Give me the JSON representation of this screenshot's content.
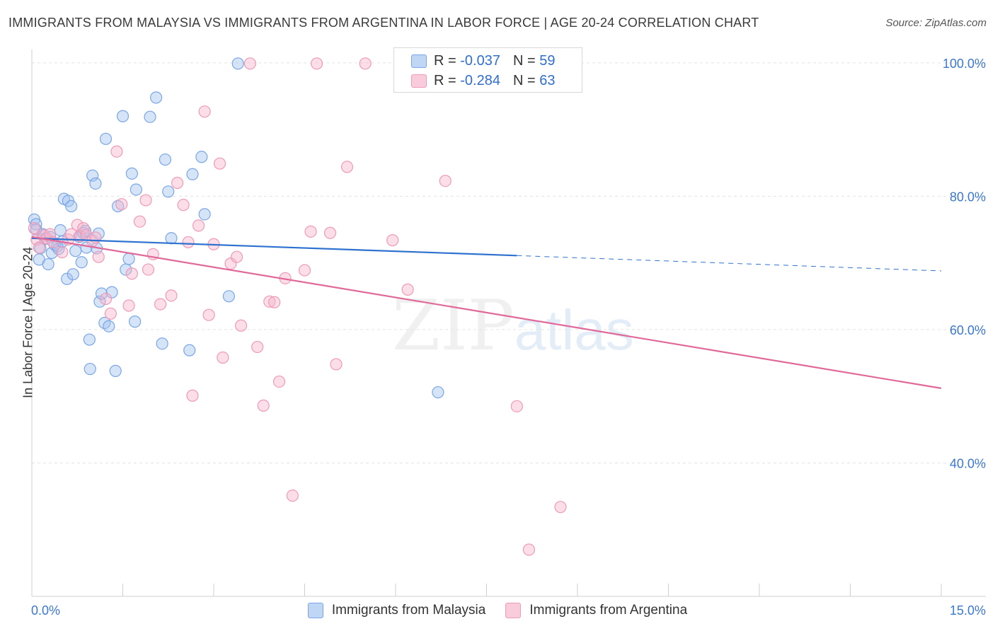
{
  "title": "IMMIGRANTS FROM MALAYSIA VS IMMIGRANTS FROM ARGENTINA IN LABOR FORCE | AGE 20-24 CORRELATION CHART",
  "source": "Source: ZipAtlas.com",
  "watermark": {
    "zip": "ZIP",
    "atlas": "atlas"
  },
  "legend_top": [
    {
      "r_label": "R = ",
      "r_value": "-0.037",
      "n_label": "N = ",
      "n_value": "59"
    },
    {
      "r_label": "R = ",
      "r_value": "-0.284",
      "n_label": "N = ",
      "n_value": "63"
    }
  ],
  "colors": {
    "blue_fill": "rgba(164,196,240,0.45)",
    "blue_stroke": "#7aa6e6",
    "blue_line": "#2e72cf",
    "pink_fill": "rgba(246,182,204,0.45)",
    "pink_stroke": "#ee9ab8",
    "pink_line": "#e0699a",
    "tick_label": "#3b78d0",
    "grid": "#e3e3e3"
  },
  "chart_data": {
    "type": "scatter",
    "xlabel": "",
    "ylabel": "In Labor Force | Age 20-24",
    "xlim": [
      0,
      15
    ],
    "ylim": [
      20,
      102
    ],
    "x_tick_labels": [
      "0.0%",
      "15.0%"
    ],
    "y_ticks": [
      40,
      60,
      80,
      100
    ],
    "y_tick_labels": [
      "40.0%",
      "60.0%",
      "80.0%",
      "100.0%"
    ],
    "grid": true,
    "legend_position": "bottom",
    "series": [
      {
        "name": "Immigrants from Malaysia",
        "points": [
          [
            0.04,
            76.5
          ],
          [
            0.07,
            75.8
          ],
          [
            0.12,
            70.5
          ],
          [
            0.14,
            72.2
          ],
          [
            0.18,
            74.3
          ],
          [
            0.22,
            73.6
          ],
          [
            0.27,
            69.8
          ],
          [
            0.3,
            73.9
          ],
          [
            0.33,
            71.5
          ],
          [
            0.38,
            72.7
          ],
          [
            0.42,
            72.5
          ],
          [
            0.44,
            72.1
          ],
          [
            0.47,
            74.9
          ],
          [
            0.5,
            73.2
          ],
          [
            0.53,
            79.6
          ],
          [
            0.58,
            67.6
          ],
          [
            0.6,
            79.3
          ],
          [
            0.65,
            78.5
          ],
          [
            0.68,
            68.3
          ],
          [
            0.72,
            71.8
          ],
          [
            0.78,
            73.9
          ],
          [
            0.82,
            70.1
          ],
          [
            0.85,
            74.5
          ],
          [
            0.88,
            74.8
          ],
          [
            0.9,
            72.3
          ],
          [
            0.95,
            58.5
          ],
          [
            0.96,
            54.1
          ],
          [
            1.0,
            83.1
          ],
          [
            1.05,
            81.9
          ],
          [
            1.1,
            74.4
          ],
          [
            1.12,
            64.2
          ],
          [
            1.15,
            65.4
          ],
          [
            1.2,
            61.0
          ],
          [
            1.22,
            88.6
          ],
          [
            1.27,
            60.5
          ],
          [
            1.32,
            65.6
          ],
          [
            1.38,
            53.8
          ],
          [
            1.42,
            78.5
          ],
          [
            1.5,
            92.0
          ],
          [
            1.55,
            69.0
          ],
          [
            1.6,
            70.6
          ],
          [
            1.65,
            83.4
          ],
          [
            1.7,
            61.2
          ],
          [
            1.72,
            81.0
          ],
          [
            1.95,
            91.9
          ],
          [
            2.05,
            94.8
          ],
          [
            2.15,
            57.9
          ],
          [
            2.2,
            85.5
          ],
          [
            2.25,
            80.7
          ],
          [
            2.3,
            73.7
          ],
          [
            2.6,
            56.9
          ],
          [
            2.65,
            83.3
          ],
          [
            2.8,
            85.9
          ],
          [
            2.85,
            77.3
          ],
          [
            3.25,
            65.0
          ],
          [
            3.4,
            99.9
          ],
          [
            6.7,
            50.6
          ],
          [
            0.07,
            75.0
          ],
          [
            1.07,
            72.2
          ]
        ]
      },
      {
        "name": "Immigrants from Argentina",
        "points": [
          [
            0.04,
            75.2
          ],
          [
            0.08,
            73.5
          ],
          [
            0.12,
            72.3
          ],
          [
            0.2,
            74.1
          ],
          [
            0.25,
            73.7
          ],
          [
            0.3,
            74.3
          ],
          [
            0.35,
            73.1
          ],
          [
            0.5,
            71.6
          ],
          [
            0.6,
            73.5
          ],
          [
            0.65,
            74.3
          ],
          [
            0.75,
            75.7
          ],
          [
            0.8,
            74.0
          ],
          [
            0.85,
            75.2
          ],
          [
            0.9,
            74.2
          ],
          [
            1.0,
            73.3
          ],
          [
            1.05,
            73.8
          ],
          [
            1.1,
            70.9
          ],
          [
            1.22,
            64.6
          ],
          [
            1.3,
            62.4
          ],
          [
            1.4,
            86.7
          ],
          [
            1.48,
            78.8
          ],
          [
            1.6,
            63.6
          ],
          [
            1.65,
            68.4
          ],
          [
            1.78,
            76.2
          ],
          [
            1.88,
            79.4
          ],
          [
            1.92,
            69.0
          ],
          [
            2.0,
            71.3
          ],
          [
            2.12,
            63.8
          ],
          [
            2.3,
            65.1
          ],
          [
            2.4,
            82.0
          ],
          [
            2.5,
            78.7
          ],
          [
            2.58,
            73.1
          ],
          [
            2.65,
            50.1
          ],
          [
            2.75,
            75.6
          ],
          [
            2.85,
            92.7
          ],
          [
            2.92,
            62.2
          ],
          [
            3.0,
            72.8
          ],
          [
            3.1,
            84.9
          ],
          [
            3.15,
            55.8
          ],
          [
            3.28,
            69.9
          ],
          [
            3.38,
            70.9
          ],
          [
            3.45,
            60.6
          ],
          [
            3.6,
            99.9
          ],
          [
            3.72,
            57.4
          ],
          [
            3.82,
            48.6
          ],
          [
            3.92,
            64.2
          ],
          [
            4.0,
            64.1
          ],
          [
            4.08,
            52.2
          ],
          [
            4.18,
            67.7
          ],
          [
            4.3,
            35.1
          ],
          [
            4.5,
            68.9
          ],
          [
            4.6,
            74.7
          ],
          [
            4.7,
            99.9
          ],
          [
            4.92,
            74.5
          ],
          [
            5.02,
            54.8
          ],
          [
            5.2,
            84.4
          ],
          [
            5.5,
            99.9
          ],
          [
            5.95,
            73.4
          ],
          [
            6.2,
            66.0
          ],
          [
            6.82,
            82.3
          ],
          [
            8.0,
            48.5
          ],
          [
            8.2,
            27.0
          ],
          [
            8.72,
            33.4
          ]
        ]
      }
    ],
    "trend_lines": [
      {
        "series": "Immigrants from Malaysia",
        "from": [
          0,
          73.7
        ],
        "to": [
          8.0,
          71.1
        ],
        "dashed_to": [
          15,
          68.8
        ]
      },
      {
        "series": "Immigrants from Argentina",
        "from": [
          0,
          73.9
        ],
        "to": [
          15,
          51.2
        ]
      }
    ]
  }
}
